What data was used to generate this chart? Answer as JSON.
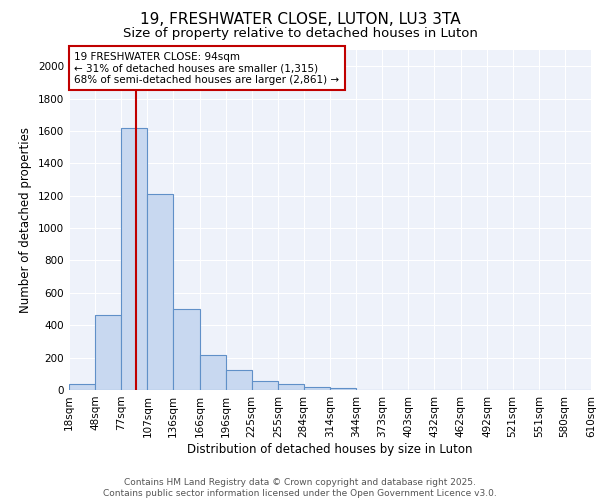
{
  "title": "19, FRESHWATER CLOSE, LUTON, LU3 3TA",
  "subtitle": "Size of property relative to detached houses in Luton",
  "xlabel": "Distribution of detached houses by size in Luton",
  "ylabel": "Number of detached properties",
  "bins": [
    18,
    48,
    77,
    107,
    136,
    166,
    196,
    225,
    255,
    284,
    314,
    344,
    373,
    403,
    432,
    462,
    492,
    521,
    551,
    580,
    610
  ],
  "counts": [
    35,
    465,
    1620,
    1210,
    500,
    215,
    125,
    55,
    35,
    18,
    10,
    0,
    0,
    0,
    0,
    0,
    0,
    0,
    0,
    0
  ],
  "bar_facecolor": "#c8d8f0",
  "bar_edgecolor": "#6090c8",
  "bar_linewidth": 0.8,
  "vline_x": 94,
  "vline_color": "#c00000",
  "vline_linewidth": 1.5,
  "annotation_text": "19 FRESHWATER CLOSE: 94sqm\n← 31% of detached houses are smaller (1,315)\n68% of semi-detached houses are larger (2,861) →",
  "annotation_box_edgecolor": "#c00000",
  "annotation_box_facecolor": "white",
  "ylim": [
    0,
    2100
  ],
  "yticks": [
    0,
    200,
    400,
    600,
    800,
    1000,
    1200,
    1400,
    1600,
    1800,
    2000
  ],
  "background_color": "#eef2fa",
  "grid_color": "white",
  "tick_labels": [
    "18sqm",
    "48sqm",
    "77sqm",
    "107sqm",
    "136sqm",
    "166sqm",
    "196sqm",
    "225sqm",
    "255sqm",
    "284sqm",
    "314sqm",
    "344sqm",
    "373sqm",
    "403sqm",
    "432sqm",
    "462sqm",
    "492sqm",
    "521sqm",
    "551sqm",
    "580sqm",
    "610sqm"
  ],
  "footer_text": "Contains HM Land Registry data © Crown copyright and database right 2025.\nContains public sector information licensed under the Open Government Licence v3.0.",
  "title_fontsize": 11,
  "subtitle_fontsize": 9.5,
  "axis_label_fontsize": 8.5,
  "tick_fontsize": 7.5,
  "annotation_fontsize": 7.5,
  "footer_fontsize": 6.5
}
